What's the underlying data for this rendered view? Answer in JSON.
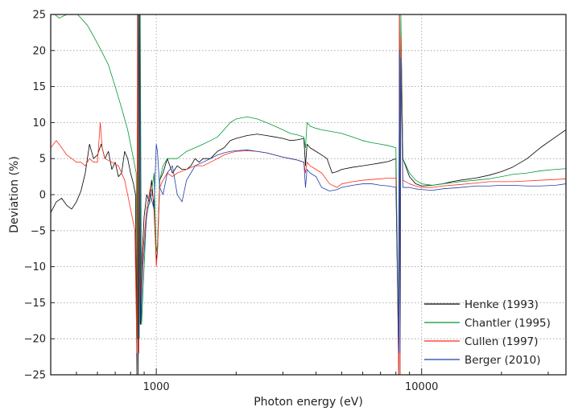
{
  "chart_data": {
    "type": "line",
    "title": "",
    "xlabel": "Photon energy (eV)",
    "ylabel": "Deviation (%)",
    "xscale": "log",
    "xlim": [
      400,
      35000
    ],
    "ylim": [
      -25,
      25
    ],
    "yticks": [
      25,
      20,
      15,
      10,
      5,
      0,
      -5,
      -10,
      -15,
      -20,
      -25
    ],
    "ytick_labels": [
      "25",
      "20",
      "15",
      "10",
      "5",
      "0",
      "−5",
      "−10",
      "−15",
      "−20",
      "−25"
    ],
    "xticks_labeled": [
      1000,
      10000
    ],
    "xtick_labels": [
      "1000",
      "10000"
    ],
    "x_gridlines": [
      1000,
      10000
    ],
    "grid": true,
    "legend_position": "bottom-right",
    "series": [
      {
        "name": "Henke (1993)",
        "color": "#000000",
        "points": [
          [
            400,
            -2.5
          ],
          [
            420,
            -1
          ],
          [
            440,
            -0.5
          ],
          [
            460,
            -1.5
          ],
          [
            480,
            -2
          ],
          [
            500,
            -1
          ],
          [
            520,
            0.5
          ],
          [
            540,
            3
          ],
          [
            560,
            7
          ],
          [
            580,
            5
          ],
          [
            600,
            5.5
          ],
          [
            620,
            7
          ],
          [
            640,
            5
          ],
          [
            660,
            6
          ],
          [
            680,
            3.5
          ],
          [
            700,
            4.5
          ],
          [
            720,
            2.5
          ],
          [
            740,
            3
          ],
          [
            760,
            6
          ],
          [
            780,
            5
          ],
          [
            800,
            3
          ],
          [
            820,
            1.5
          ],
          [
            835,
            0
          ],
          [
            845,
            -25
          ],
          [
            850,
            25
          ],
          [
            855,
            -25
          ],
          [
            862,
            25
          ],
          [
            870,
            -18
          ],
          [
            880,
            -10
          ],
          [
            900,
            -3
          ],
          [
            920,
            0
          ],
          [
            940,
            -1
          ],
          [
            960,
            2
          ],
          [
            980,
            -2
          ],
          [
            1000,
            -9
          ],
          [
            1010,
            -8
          ],
          [
            1030,
            2
          ],
          [
            1060,
            3
          ],
          [
            1100,
            5
          ],
          [
            1150,
            3
          ],
          [
            1200,
            4
          ],
          [
            1250,
            3.5
          ],
          [
            1300,
            3.5
          ],
          [
            1350,
            4
          ],
          [
            1400,
            5
          ],
          [
            1450,
            4.5
          ],
          [
            1500,
            5
          ],
          [
            1600,
            5
          ],
          [
            1700,
            6
          ],
          [
            1800,
            6.5
          ],
          [
            1900,
            7.5
          ],
          [
            2000,
            7.8
          ],
          [
            2200,
            8.2
          ],
          [
            2400,
            8.4
          ],
          [
            2600,
            8.2
          ],
          [
            2800,
            8
          ],
          [
            3000,
            7.8
          ],
          [
            3200,
            7.5
          ],
          [
            3400,
            7.6
          ],
          [
            3600,
            7.8
          ],
          [
            3650,
            4
          ],
          [
            3700,
            7
          ],
          [
            3800,
            6.5
          ],
          [
            4000,
            6
          ],
          [
            4200,
            5.5
          ],
          [
            4400,
            5
          ],
          [
            4600,
            3
          ],
          [
            4800,
            3.2
          ],
          [
            5000,
            3.5
          ],
          [
            5500,
            3.8
          ],
          [
            6000,
            4
          ],
          [
            6500,
            4.2
          ],
          [
            7000,
            4.4
          ],
          [
            7500,
            4.6
          ],
          [
            8000,
            5
          ],
          [
            8200,
            -25
          ],
          [
            8250,
            25
          ],
          [
            8300,
            -25
          ],
          [
            8350,
            24
          ],
          [
            8500,
            5
          ],
          [
            9000,
            2.5
          ],
          [
            9500,
            1.5
          ],
          [
            10000,
            1.2
          ],
          [
            11000,
            1.3
          ],
          [
            12000,
            1.5
          ],
          [
            13000,
            1.8
          ],
          [
            14000,
            2
          ],
          [
            16000,
            2.3
          ],
          [
            18000,
            2.7
          ],
          [
            20000,
            3.2
          ],
          [
            22000,
            3.8
          ],
          [
            25000,
            5
          ],
          [
            28000,
            6.5
          ],
          [
            32000,
            8
          ],
          [
            35000,
            9
          ]
        ]
      },
      {
        "name": "Chantler (1995)",
        "color": "#009933",
        "points": [
          [
            400,
            25.5
          ],
          [
            430,
            24.5
          ],
          [
            460,
            25
          ],
          [
            490,
            25.5
          ],
          [
            520,
            24.5
          ],
          [
            550,
            23.5
          ],
          [
            580,
            22
          ],
          [
            620,
            20
          ],
          [
            660,
            18
          ],
          [
            700,
            15
          ],
          [
            740,
            12
          ],
          [
            780,
            9
          ],
          [
            820,
            5
          ],
          [
            840,
            3
          ],
          [
            848,
            -20
          ],
          [
            856,
            25
          ],
          [
            863,
            -20
          ],
          [
            870,
            25
          ],
          [
            880,
            -18
          ],
          [
            900,
            -10
          ],
          [
            920,
            -2
          ],
          [
            950,
            -1
          ],
          [
            980,
            3
          ],
          [
            1000,
            -8
          ],
          [
            1010,
            -7
          ],
          [
            1030,
            2
          ],
          [
            1060,
            4
          ],
          [
            1100,
            5
          ],
          [
            1200,
            5
          ],
          [
            1300,
            6
          ],
          [
            1400,
            6.5
          ],
          [
            1500,
            7
          ],
          [
            1600,
            7.5
          ],
          [
            1700,
            8
          ],
          [
            1800,
            9
          ],
          [
            1900,
            10
          ],
          [
            2000,
            10.5
          ],
          [
            2200,
            10.8
          ],
          [
            2400,
            10.5
          ],
          [
            2600,
            10
          ],
          [
            2800,
            9.5
          ],
          [
            3000,
            9
          ],
          [
            3200,
            8.5
          ],
          [
            3400,
            8.3
          ],
          [
            3600,
            8
          ],
          [
            3650,
            6.5
          ],
          [
            3700,
            10
          ],
          [
            3800,
            9.5
          ],
          [
            4000,
            9.2
          ],
          [
            4200,
            9
          ],
          [
            4500,
            8.8
          ],
          [
            5000,
            8.5
          ],
          [
            5500,
            8
          ],
          [
            6000,
            7.5
          ],
          [
            6500,
            7.2
          ],
          [
            7000,
            7
          ],
          [
            7500,
            6.8
          ],
          [
            8000,
            6.5
          ],
          [
            8200,
            -20
          ],
          [
            8250,
            25
          ],
          [
            8300,
            -20
          ],
          [
            8350,
            25
          ],
          [
            8500,
            5
          ],
          [
            9000,
            3
          ],
          [
            9500,
            2
          ],
          [
            10000,
            1.5
          ],
          [
            11000,
            1.3
          ],
          [
            12000,
            1.5
          ],
          [
            14000,
            1.8
          ],
          [
            16000,
            2
          ],
          [
            18000,
            2.2
          ],
          [
            20000,
            2.5
          ],
          [
            22000,
            2.8
          ],
          [
            25000,
            3
          ],
          [
            28000,
            3.3
          ],
          [
            32000,
            3.5
          ],
          [
            35000,
            3.6
          ]
        ]
      },
      {
        "name": "Cullen (1997)",
        "color": "#ff2a1a",
        "points": [
          [
            400,
            6.5
          ],
          [
            420,
            7.5
          ],
          [
            440,
            6.5
          ],
          [
            460,
            5.5
          ],
          [
            480,
            5
          ],
          [
            500,
            4.5
          ],
          [
            520,
            4.5
          ],
          [
            540,
            4
          ],
          [
            560,
            5
          ],
          [
            580,
            4.5
          ],
          [
            600,
            4.5
          ],
          [
            615,
            10
          ],
          [
            625,
            6.5
          ],
          [
            640,
            5
          ],
          [
            680,
            4.5
          ],
          [
            720,
            4
          ],
          [
            760,
            2
          ],
          [
            800,
            -2
          ],
          [
            830,
            -5
          ],
          [
            845,
            -22
          ],
          [
            852,
            25
          ],
          [
            860,
            -22
          ],
          [
            866,
            25
          ],
          [
            874,
            -15
          ],
          [
            890,
            -8
          ],
          [
            920,
            -2
          ],
          [
            950,
            1
          ],
          [
            980,
            -1
          ],
          [
            1000,
            -10
          ],
          [
            1010,
            -8
          ],
          [
            1030,
            1
          ],
          [
            1060,
            2
          ],
          [
            1100,
            3
          ],
          [
            1150,
            2.5
          ],
          [
            1200,
            3
          ],
          [
            1300,
            3.5
          ],
          [
            1400,
            4
          ],
          [
            1500,
            4
          ],
          [
            1600,
            4.5
          ],
          [
            1700,
            5
          ],
          [
            1800,
            5.5
          ],
          [
            1900,
            5.8
          ],
          [
            2000,
            6
          ],
          [
            2200,
            6.1
          ],
          [
            2400,
            6
          ],
          [
            2600,
            5.8
          ],
          [
            2800,
            5.5
          ],
          [
            3000,
            5.2
          ],
          [
            3200,
            5
          ],
          [
            3400,
            4.8
          ],
          [
            3600,
            4.5
          ],
          [
            3650,
            3
          ],
          [
            3700,
            4.5
          ],
          [
            3800,
            4
          ],
          [
            4000,
            3.5
          ],
          [
            4200,
            3
          ],
          [
            4500,
            1.5
          ],
          [
            4800,
            1
          ],
          [
            5000,
            1.5
          ],
          [
            5500,
            1.8
          ],
          [
            6000,
            2
          ],
          [
            6500,
            2.1
          ],
          [
            7000,
            2.2
          ],
          [
            7500,
            2.3
          ],
          [
            8000,
            2.3
          ],
          [
            8200,
            -25
          ],
          [
            8250,
            25
          ],
          [
            8300,
            -25
          ],
          [
            8350,
            22
          ],
          [
            8500,
            2
          ],
          [
            9000,
            1.5
          ],
          [
            9500,
            1.2
          ],
          [
            10000,
            1
          ],
          [
            11000,
            1
          ],
          [
            12000,
            1.2
          ],
          [
            14000,
            1.4
          ],
          [
            16000,
            1.6
          ],
          [
            18000,
            1.8
          ],
          [
            20000,
            1.8
          ],
          [
            22000,
            1.8
          ],
          [
            25000,
            1.9
          ],
          [
            28000,
            2
          ],
          [
            32000,
            2.1
          ],
          [
            35000,
            2.2
          ]
        ]
      },
      {
        "name": "Berger (2010)",
        "color": "#1f3fa6",
        "points": [
          [
            860,
            -20
          ],
          [
            866,
            25
          ],
          [
            874,
            -18
          ],
          [
            890,
            -10
          ],
          [
            920,
            -3
          ],
          [
            950,
            0
          ],
          [
            980,
            -2
          ],
          [
            1000,
            7
          ],
          [
            1010,
            6
          ],
          [
            1030,
            1
          ],
          [
            1060,
            0
          ],
          [
            1100,
            3
          ],
          [
            1150,
            4
          ],
          [
            1200,
            0
          ],
          [
            1250,
            -1
          ],
          [
            1300,
            2
          ],
          [
            1350,
            3
          ],
          [
            1400,
            4
          ],
          [
            1500,
            4.5
          ],
          [
            1600,
            5
          ],
          [
            1700,
            5.5
          ],
          [
            1800,
            5.8
          ],
          [
            1900,
            6
          ],
          [
            2000,
            6.1
          ],
          [
            2200,
            6.2
          ],
          [
            2400,
            6
          ],
          [
            2600,
            5.8
          ],
          [
            2800,
            5.5
          ],
          [
            3000,
            5.2
          ],
          [
            3200,
            5
          ],
          [
            3400,
            4.8
          ],
          [
            3600,
            4.5
          ],
          [
            3650,
            1
          ],
          [
            3700,
            3.5
          ],
          [
            3800,
            3
          ],
          [
            4000,
            2.5
          ],
          [
            4200,
            1
          ],
          [
            4500,
            0.5
          ],
          [
            4800,
            0.7
          ],
          [
            5000,
            1
          ],
          [
            5500,
            1.3
          ],
          [
            6000,
            1.5
          ],
          [
            6500,
            1.5
          ],
          [
            7000,
            1.3
          ],
          [
            7500,
            1.2
          ],
          [
            8000,
            1
          ],
          [
            8200,
            -22
          ],
          [
            8250,
            20
          ],
          [
            8300,
            -22
          ],
          [
            8350,
            19
          ],
          [
            8500,
            1
          ],
          [
            9000,
            1
          ],
          [
            9500,
            0.8
          ],
          [
            10000,
            0.7
          ],
          [
            11000,
            0.6
          ],
          [
            12000,
            0.8
          ],
          [
            14000,
            1
          ],
          [
            16000,
            1.2
          ],
          [
            18000,
            1.2
          ],
          [
            20000,
            1.3
          ],
          [
            22000,
            1.3
          ],
          [
            25000,
            1.2
          ],
          [
            28000,
            1.2
          ],
          [
            32000,
            1.3
          ],
          [
            35000,
            1.5
          ]
        ]
      }
    ]
  }
}
